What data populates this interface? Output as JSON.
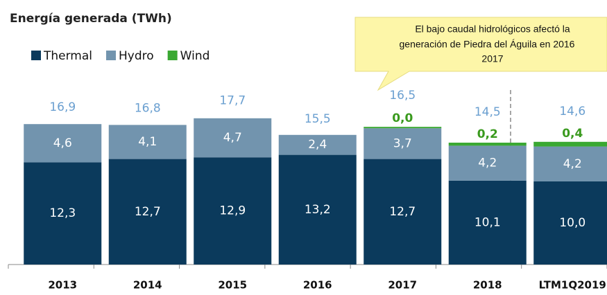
{
  "chart_data": {
    "type": "stacked_bar",
    "title": "Energía generada (TWh)",
    "note": [
      "El bajo caudal hidrológicos afectó la",
      "generación de Piedra del Águila en 2016",
      "2017"
    ],
    "categories": [
      "2013",
      "2014",
      "2015",
      "2016",
      "2017",
      "2018",
      "LTM1Q2019"
    ],
    "series": [
      {
        "name": "Thermal",
        "color": "#0b3a5c",
        "values": [
          12.3,
          12.7,
          12.9,
          13.2,
          12.7,
          10.1,
          10.0
        ],
        "value_labels": [
          "12,3",
          "12,7",
          "12,9",
          "13,2",
          "12,7",
          "10,1",
          "10,0"
        ]
      },
      {
        "name": "Hydro",
        "color": "#7294ae",
        "values": [
          4.6,
          4.1,
          4.7,
          2.4,
          3.7,
          4.2,
          4.2
        ],
        "value_labels": [
          "4,6",
          "4,1",
          "4,7",
          "2,4",
          "3,7",
          "4,2",
          "4,2"
        ]
      },
      {
        "name": "Wind",
        "color": "#3aa832",
        "values": [
          null,
          null,
          null,
          null,
          0.0,
          0.2,
          0.4
        ],
        "value_labels": [
          null,
          null,
          null,
          null,
          "0,0",
          "0,2",
          "0,4"
        ]
      }
    ],
    "totals": {
      "values": [
        16.9,
        16.8,
        17.7,
        15.5,
        16.5,
        14.5,
        14.6
      ],
      "value_labels": [
        "16,9",
        "16,8",
        "17,7",
        "15,5",
        "16,5",
        "14,5",
        "14,6"
      ]
    },
    "ylim": [
      0,
      25
    ]
  }
}
